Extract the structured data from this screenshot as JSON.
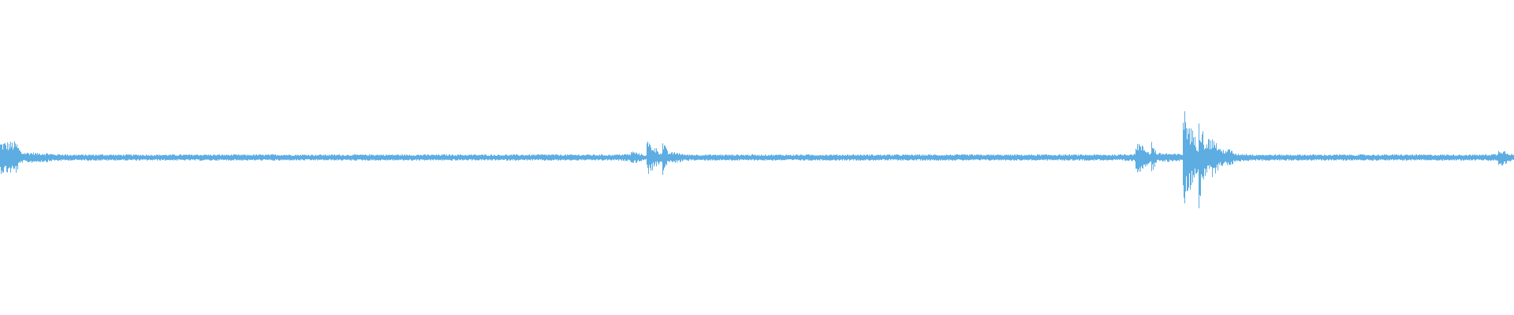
{
  "chart_data": {
    "type": "area",
    "title": "",
    "xlabel": "",
    "ylabel": "",
    "ylim": [
      -1,
      1
    ],
    "grid": false,
    "legend": "none",
    "color": "#5dade2",
    "background": "#ffffff",
    "envelope_amplitude": [
      0.1,
      0.03,
      0.025,
      0.018,
      0.015,
      0.015,
      0.016,
      0.015,
      0.015,
      0.015,
      0.015,
      0.015,
      0.016,
      0.015,
      0.015,
      0.015,
      0.015,
      0.016,
      0.015,
      0.015,
      0.015,
      0.015,
      0.015,
      0.016,
      0.015,
      0.015,
      0.015,
      0.015,
      0.016,
      0.015,
      0.015,
      0.015,
      0.015,
      0.015,
      0.016,
      0.015,
      0.015,
      0.015,
      0.015,
      0.018,
      0.04,
      0.11,
      0.03,
      0.016,
      0.015,
      0.015,
      0.015,
      0.015,
      0.015,
      0.015,
      0.015,
      0.015,
      0.015,
      0.015,
      0.015,
      0.015,
      0.015,
      0.015,
      0.015,
      0.015,
      0.015,
      0.015,
      0.015,
      0.015,
      0.015,
      0.015,
      0.015,
      0.015,
      0.015,
      0.015,
      0.015,
      0.02,
      0.11,
      0.025,
      0.02,
      0.33,
      0.12,
      0.05,
      0.02,
      0.016,
      0.015,
      0.015,
      0.015,
      0.015,
      0.015,
      0.015,
      0.015,
      0.015,
      0.015,
      0.015,
      0.015,
      0.015,
      0.015,
      0.015,
      0.018,
      0.06
    ]
  }
}
